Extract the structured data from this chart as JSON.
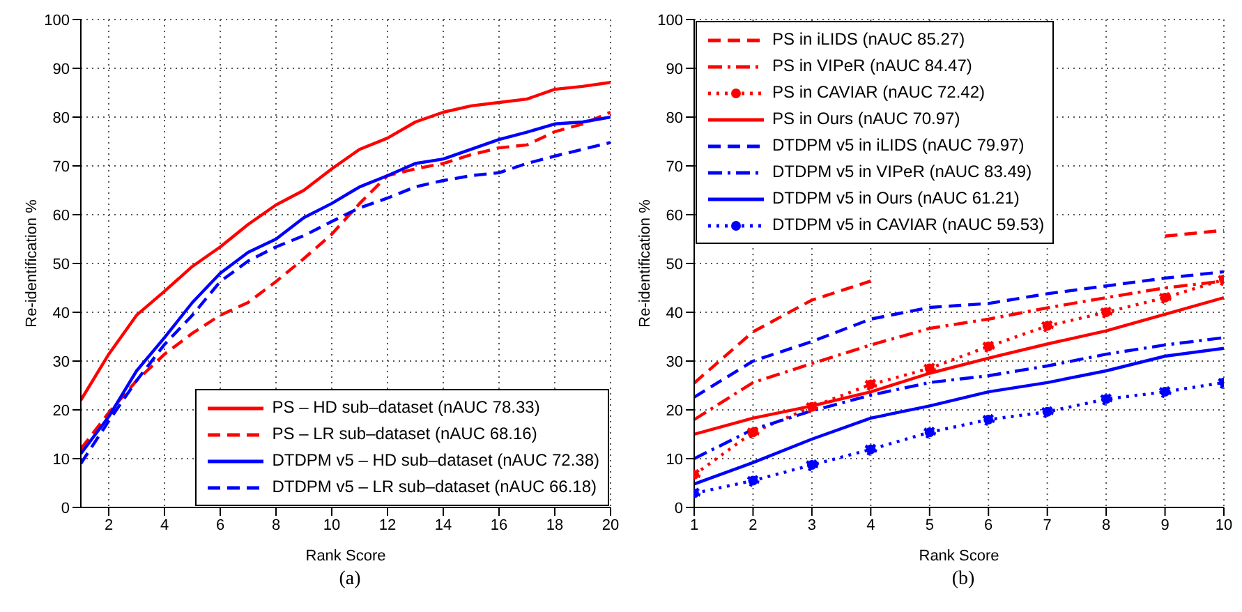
{
  "chart_data": [
    {
      "type": "line",
      "xlabel": "Rank Score",
      "ylabel": "Re-identification %",
      "annotations": [
        "(a)"
      ],
      "x": [
        1,
        2,
        3,
        4,
        5,
        6,
        7,
        8,
        9,
        10,
        11,
        12,
        13,
        14,
        15,
        16,
        17,
        18,
        19,
        20
      ],
      "xlim": [
        1,
        20
      ],
      "xticks": [
        2,
        4,
        6,
        8,
        10,
        12,
        14,
        16,
        18,
        20
      ],
      "ylim": [
        0,
        100
      ],
      "yticks": [
        0,
        10,
        20,
        30,
        40,
        50,
        60,
        70,
        80,
        90,
        100
      ],
      "grid": true,
      "legend": "bottom right",
      "series": [
        {
          "name": "PS – HD sub–dataset (nAUC 78.33)",
          "color": "#ff0000",
          "line_style": "solid",
          "values": [
            22,
            31.4,
            39.4,
            44.3,
            49.4,
            53.4,
            58,
            62,
            65,
            69.4,
            73.4,
            75.7,
            79,
            81,
            82.3,
            83,
            83.7,
            85.7,
            86.3,
            87.1
          ]
        },
        {
          "name": "PS – LR sub–dataset (nAUC 68.16)",
          "color": "#ff0000",
          "line_style": "dashed",
          "values": [
            12,
            19.4,
            26,
            31.4,
            35.7,
            39.4,
            42,
            46.3,
            51,
            56,
            62.3,
            68,
            69.4,
            70.5,
            72.3,
            73.7,
            74.3,
            77,
            78.6,
            81
          ]
        },
        {
          "name": "DTDPM v5 – HD sub–dataset (nAUC 72.38)",
          "color": "#0000ff",
          "line_style": "solid",
          "values": [
            11,
            18.6,
            28,
            34.8,
            42,
            48,
            52.3,
            55,
            59.4,
            62.3,
            65.7,
            68,
            70.5,
            71.4,
            73.4,
            75.4,
            76.9,
            78.6,
            79,
            80
          ]
        },
        {
          "name": "DTDPM v5 – LR sub–dataset (nAUC 66.18)",
          "color": "#0000ff",
          "line_style": "dashed",
          "values": [
            9,
            17.7,
            26,
            33.4,
            39.4,
            46.3,
            50.5,
            53.4,
            55.7,
            58.6,
            61.4,
            63.4,
            65.7,
            67,
            68,
            68.6,
            70.5,
            72,
            73.4,
            74.8
          ]
        }
      ]
    },
    {
      "type": "line",
      "xlabel": "Rank Score",
      "ylabel": "Re-identification %",
      "annotations": [
        "(b)"
      ],
      "x": [
        1,
        2,
        3,
        4,
        5,
        6,
        7,
        8,
        9,
        10
      ],
      "xlim": [
        1,
        10
      ],
      "xticks": [
        1,
        2,
        3,
        4,
        5,
        6,
        7,
        8,
        9,
        10
      ],
      "ylim": [
        0,
        100
      ],
      "yticks": [
        0,
        10,
        20,
        30,
        40,
        50,
        60,
        70,
        80,
        90,
        100
      ],
      "grid": true,
      "legend": "top left",
      "series": [
        {
          "name": "PS in iLIDS (nAUC 85.27)",
          "color": "#ff0000",
          "line_style": "dashed",
          "marker": "none",
          "values": [
            25.5,
            36,
            42.5,
            46.4,
            null,
            null,
            null,
            null,
            55.6,
            56.8
          ]
        },
        {
          "name": "PS in VIPeR (nAUC 84.47)",
          "color": "#ff0000",
          "line_style": "dashdot",
          "marker": "none",
          "values": [
            18,
            25.6,
            29.5,
            33.3,
            36.7,
            38.6,
            40.9,
            43,
            45,
            46.4
          ]
        },
        {
          "name": "PS in CAVIAR (nAUC 72.42)",
          "color": "#ff0000",
          "line_style": "dotted",
          "marker": "circle",
          "values": [
            6.7,
            15.4,
            20.6,
            25.2,
            28.5,
            33,
            37.2,
            40,
            43,
            46.7
          ]
        },
        {
          "name": "PS in Ours (nAUC 70.97)",
          "color": "#ff0000",
          "line_style": "solid",
          "marker": "none",
          "values": [
            15,
            18.3,
            20.8,
            23.7,
            27.5,
            30.6,
            33.5,
            36.2,
            39.6,
            43
          ]
        },
        {
          "name": "DTDPM v5 in iLIDS (nAUC 79.97)",
          "color": "#0000ff",
          "line_style": "dashed",
          "marker": "none",
          "values": [
            22.6,
            30,
            34,
            38.6,
            41,
            41.8,
            43.8,
            45.4,
            47,
            48.3
          ]
        },
        {
          "name": "DTDPM v5 in VIPeR (nAUC 83.49)",
          "color": "#0000ff",
          "line_style": "dashdot",
          "marker": "none",
          "values": [
            10,
            16,
            19.8,
            23,
            25.6,
            27,
            29,
            31.4,
            33.3,
            34.8
          ]
        },
        {
          "name": "DTDPM v5 in Ours (nAUC 61.21)",
          "color": "#0000ff",
          "line_style": "solid",
          "marker": "none",
          "values": [
            4.8,
            9.2,
            14,
            18.3,
            20.8,
            23.7,
            25.6,
            28,
            31,
            32.6
          ]
        },
        {
          "name": "DTDPM v5 in CAVIAR (nAUC 59.53)",
          "color": "#0000ff",
          "line_style": "dotted",
          "marker": "circle",
          "values": [
            2.9,
            5.5,
            8.7,
            11.9,
            15.4,
            18,
            19.6,
            22.2,
            23.7,
            25.6
          ]
        }
      ]
    }
  ]
}
